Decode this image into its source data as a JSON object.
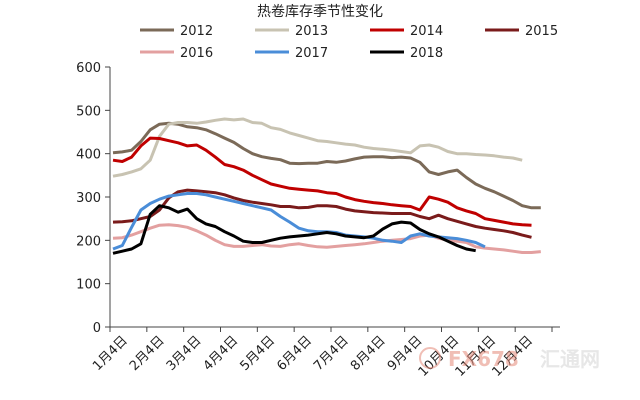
{
  "chart_data": {
    "type": "line",
    "title": "热卷库存季节性变化",
    "xlabel": "",
    "ylabel": "",
    "ylim": [
      0,
      600
    ],
    "yticks": [
      0,
      100,
      200,
      300,
      400,
      500,
      600
    ],
    "x_tick_labels": [
      "1月4日",
      "2月4日",
      "3月4日",
      "4月4日",
      "5月4日",
      "6月4日",
      "7月4日",
      "8月4日",
      "9月4日",
      "10月4日",
      "11月4日",
      "12月4日"
    ],
    "grid": false,
    "legend": "top",
    "x_unit": "week of year",
    "series": [
      {
        "name": "2012",
        "color": "#7b6a58",
        "points": [
          [
            1,
            402
          ],
          [
            2,
            404
          ],
          [
            3,
            408
          ],
          [
            4,
            428
          ],
          [
            5,
            455
          ],
          [
            6,
            468
          ],
          [
            7,
            470
          ],
          [
            8,
            468
          ],
          [
            9,
            462
          ],
          [
            10,
            460
          ],
          [
            11,
            455
          ],
          [
            12,
            446
          ],
          [
            13,
            436
          ],
          [
            14,
            426
          ],
          [
            15,
            412
          ],
          [
            16,
            400
          ],
          [
            17,
            393
          ],
          [
            18,
            389
          ],
          [
            19,
            386
          ],
          [
            20,
            378
          ],
          [
            21,
            377
          ],
          [
            22,
            378
          ],
          [
            23,
            378
          ],
          [
            24,
            382
          ],
          [
            25,
            380
          ],
          [
            26,
            383
          ],
          [
            27,
            388
          ],
          [
            28,
            392
          ],
          [
            29,
            393
          ],
          [
            30,
            393
          ],
          [
            31,
            391
          ],
          [
            32,
            392
          ],
          [
            33,
            390
          ],
          [
            34,
            380
          ],
          [
            35,
            358
          ],
          [
            36,
            352
          ],
          [
            37,
            358
          ],
          [
            38,
            362
          ],
          [
            39,
            345
          ],
          [
            40,
            330
          ],
          [
            41,
            320
          ],
          [
            42,
            312
          ],
          [
            43,
            302
          ],
          [
            44,
            292
          ],
          [
            45,
            280
          ],
          [
            46,
            275
          ],
          [
            47,
            275
          ]
        ]
      },
      {
        "name": "2013",
        "color": "#c8c3b2",
        "points": [
          [
            1,
            348
          ],
          [
            2,
            352
          ],
          [
            3,
            358
          ],
          [
            4,
            365
          ],
          [
            5,
            385
          ],
          [
            6,
            440
          ],
          [
            7,
            468
          ],
          [
            8,
            472
          ],
          [
            9,
            472
          ],
          [
            10,
            470
          ],
          [
            11,
            473
          ],
          [
            12,
            477
          ],
          [
            13,
            480
          ],
          [
            14,
            478
          ],
          [
            15,
            480
          ],
          [
            16,
            472
          ],
          [
            17,
            470
          ],
          [
            18,
            460
          ],
          [
            19,
            456
          ],
          [
            20,
            448
          ],
          [
            21,
            442
          ],
          [
            22,
            436
          ],
          [
            23,
            430
          ],
          [
            24,
            428
          ],
          [
            25,
            425
          ],
          [
            26,
            422
          ],
          [
            27,
            420
          ],
          [
            28,
            415
          ],
          [
            29,
            412
          ],
          [
            30,
            410
          ],
          [
            31,
            408
          ],
          [
            32,
            405
          ],
          [
            33,
            402
          ],
          [
            34,
            418
          ],
          [
            35,
            420
          ],
          [
            36,
            415
          ],
          [
            37,
            405
          ],
          [
            38,
            400
          ],
          [
            39,
            400
          ],
          [
            40,
            398
          ],
          [
            41,
            397
          ],
          [
            42,
            395
          ],
          [
            43,
            392
          ],
          [
            44,
            390
          ],
          [
            45,
            385
          ]
        ]
      },
      {
        "name": "2014",
        "color": "#c00000",
        "points": [
          [
            1,
            385
          ],
          [
            2,
            382
          ],
          [
            3,
            392
          ],
          [
            4,
            418
          ],
          [
            5,
            436
          ],
          [
            6,
            435
          ],
          [
            7,
            430
          ],
          [
            8,
            425
          ],
          [
            9,
            418
          ],
          [
            10,
            420
          ],
          [
            11,
            408
          ],
          [
            12,
            392
          ],
          [
            13,
            375
          ],
          [
            14,
            370
          ],
          [
            15,
            362
          ],
          [
            16,
            350
          ],
          [
            17,
            340
          ],
          [
            18,
            330
          ],
          [
            19,
            325
          ],
          [
            20,
            320
          ],
          [
            21,
            318
          ],
          [
            22,
            316
          ],
          [
            23,
            314
          ],
          [
            24,
            310
          ],
          [
            25,
            308
          ],
          [
            26,
            300
          ],
          [
            27,
            294
          ],
          [
            28,
            290
          ],
          [
            29,
            287
          ],
          [
            30,
            285
          ],
          [
            31,
            282
          ],
          [
            32,
            280
          ],
          [
            33,
            278
          ],
          [
            34,
            270
          ],
          [
            35,
            300
          ],
          [
            36,
            295
          ],
          [
            37,
            288
          ],
          [
            38,
            275
          ],
          [
            39,
            268
          ],
          [
            40,
            262
          ],
          [
            41,
            250
          ],
          [
            42,
            246
          ],
          [
            43,
            242
          ],
          [
            44,
            238
          ],
          [
            45,
            236
          ],
          [
            46,
            235
          ]
        ]
      },
      {
        "name": "2015",
        "color": "#7a1b1b",
        "points": [
          [
            1,
            242
          ],
          [
            2,
            243
          ],
          [
            3,
            245
          ],
          [
            4,
            250
          ],
          [
            5,
            255
          ],
          [
            6,
            270
          ],
          [
            7,
            298
          ],
          [
            8,
            312
          ],
          [
            9,
            316
          ],
          [
            10,
            314
          ],
          [
            11,
            312
          ],
          [
            12,
            310
          ],
          [
            13,
            305
          ],
          [
            14,
            298
          ],
          [
            15,
            292
          ],
          [
            16,
            288
          ],
          [
            17,
            285
          ],
          [
            18,
            282
          ],
          [
            19,
            278
          ],
          [
            20,
            278
          ],
          [
            21,
            275
          ],
          [
            22,
            276
          ],
          [
            23,
            280
          ],
          [
            24,
            280
          ],
          [
            25,
            278
          ],
          [
            26,
            272
          ],
          [
            27,
            268
          ],
          [
            28,
            266
          ],
          [
            29,
            264
          ],
          [
            30,
            263
          ],
          [
            31,
            262
          ],
          [
            32,
            262
          ],
          [
            33,
            262
          ],
          [
            34,
            255
          ],
          [
            35,
            250
          ],
          [
            36,
            258
          ],
          [
            37,
            250
          ],
          [
            38,
            244
          ],
          [
            39,
            238
          ],
          [
            40,
            232
          ],
          [
            41,
            228
          ],
          [
            42,
            225
          ],
          [
            43,
            222
          ],
          [
            44,
            218
          ],
          [
            45,
            212
          ],
          [
            46,
            207
          ]
        ]
      },
      {
        "name": "2016",
        "color": "#e3a0a0",
        "points": [
          [
            1,
            205
          ],
          [
            2,
            206
          ],
          [
            3,
            212
          ],
          [
            4,
            220
          ],
          [
            5,
            228
          ],
          [
            6,
            235
          ],
          [
            7,
            236
          ],
          [
            8,
            234
          ],
          [
            9,
            230
          ],
          [
            10,
            222
          ],
          [
            11,
            212
          ],
          [
            12,
            200
          ],
          [
            13,
            190
          ],
          [
            14,
            186
          ],
          [
            15,
            186
          ],
          [
            16,
            188
          ],
          [
            17,
            190
          ],
          [
            18,
            187
          ],
          [
            19,
            186
          ],
          [
            20,
            190
          ],
          [
            21,
            192
          ],
          [
            22,
            188
          ],
          [
            23,
            185
          ],
          [
            24,
            184
          ],
          [
            25,
            186
          ],
          [
            26,
            188
          ],
          [
            27,
            190
          ],
          [
            28,
            192
          ],
          [
            29,
            195
          ],
          [
            30,
            198
          ],
          [
            31,
            200
          ],
          [
            32,
            202
          ],
          [
            33,
            204
          ],
          [
            34,
            210
          ],
          [
            35,
            212
          ],
          [
            36,
            205
          ],
          [
            37,
            200
          ],
          [
            38,
            198
          ],
          [
            39,
            195
          ],
          [
            40,
            185
          ],
          [
            41,
            182
          ],
          [
            42,
            180
          ],
          [
            43,
            178
          ],
          [
            44,
            175
          ],
          [
            45,
            172
          ],
          [
            46,
            172
          ],
          [
            47,
            174
          ]
        ]
      },
      {
        "name": "2017",
        "color": "#4a8dd8",
        "points": [
          [
            1,
            180
          ],
          [
            2,
            188
          ],
          [
            3,
            230
          ],
          [
            4,
            270
          ],
          [
            5,
            285
          ],
          [
            6,
            295
          ],
          [
            7,
            302
          ],
          [
            8,
            305
          ],
          [
            9,
            308
          ],
          [
            10,
            308
          ],
          [
            11,
            305
          ],
          [
            12,
            300
          ],
          [
            13,
            295
          ],
          [
            14,
            290
          ],
          [
            15,
            285
          ],
          [
            16,
            280
          ],
          [
            17,
            275
          ],
          [
            18,
            270
          ],
          [
            19,
            255
          ],
          [
            20,
            242
          ],
          [
            21,
            228
          ],
          [
            22,
            222
          ],
          [
            23,
            220
          ],
          [
            24,
            220
          ],
          [
            25,
            218
          ],
          [
            26,
            212
          ],
          [
            27,
            210
          ],
          [
            28,
            208
          ],
          [
            29,
            205
          ],
          [
            30,
            200
          ],
          [
            31,
            198
          ],
          [
            32,
            195
          ],
          [
            33,
            210
          ],
          [
            34,
            215
          ],
          [
            35,
            210
          ],
          [
            36,
            208
          ],
          [
            37,
            206
          ],
          [
            38,
            204
          ],
          [
            39,
            200
          ],
          [
            40,
            195
          ],
          [
            41,
            185
          ]
        ]
      },
      {
        "name": "2018",
        "color": "#000000",
        "points": [
          [
            1,
            170
          ],
          [
            2,
            175
          ],
          [
            3,
            180
          ],
          [
            4,
            192
          ],
          [
            5,
            260
          ],
          [
            6,
            280
          ],
          [
            7,
            275
          ],
          [
            8,
            265
          ],
          [
            9,
            272
          ],
          [
            10,
            250
          ],
          [
            11,
            238
          ],
          [
            12,
            232
          ],
          [
            13,
            220
          ],
          [
            14,
            210
          ],
          [
            15,
            198
          ],
          [
            16,
            195
          ],
          [
            17,
            195
          ],
          [
            18,
            200
          ],
          [
            19,
            205
          ],
          [
            20,
            208
          ],
          [
            21,
            210
          ],
          [
            22,
            212
          ],
          [
            23,
            215
          ],
          [
            24,
            218
          ],
          [
            25,
            215
          ],
          [
            26,
            210
          ],
          [
            27,
            208
          ],
          [
            28,
            206
          ],
          [
            29,
            210
          ],
          [
            30,
            226
          ],
          [
            31,
            238
          ],
          [
            32,
            242
          ],
          [
            33,
            240
          ],
          [
            34,
            225
          ],
          [
            35,
            215
          ],
          [
            36,
            208
          ],
          [
            37,
            198
          ],
          [
            38,
            188
          ],
          [
            39,
            180
          ],
          [
            40,
            176
          ]
        ]
      }
    ]
  },
  "watermark": {
    "text": "FX678",
    "text2": "汇通网"
  }
}
